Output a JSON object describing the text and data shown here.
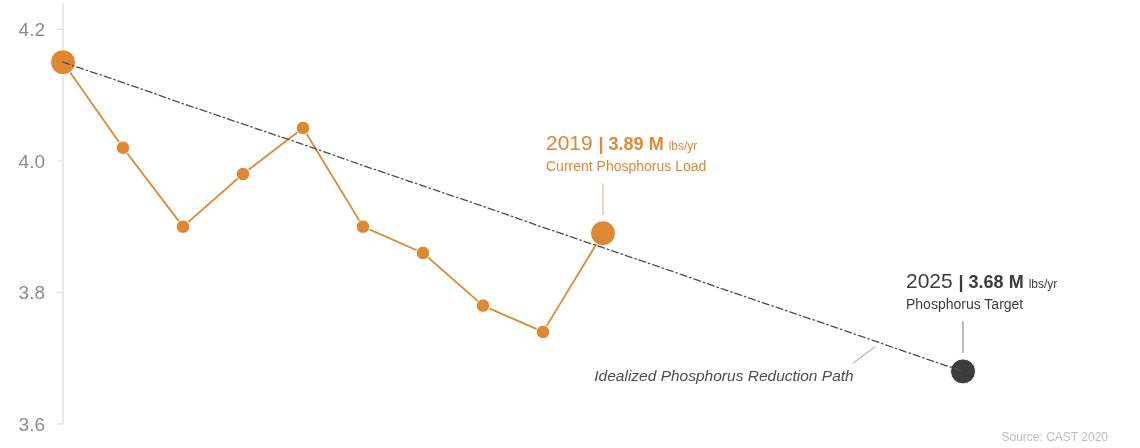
{
  "chart_data": {
    "type": "line",
    "categories": [
      null,
      null,
      null,
      null,
      null,
      null,
      null,
      null,
      null,
      null,
      null,
      null,
      null,
      null,
      null,
      null
    ],
    "ylim": [
      3.6,
      4.24
    ],
    "yticks": [
      3.6,
      3.8,
      {
        "value": 4,
        "label": "4.0"
      },
      4.2
    ],
    "tick_labels": "y",
    "series": [
      {
        "name": "Idealized Phosphorus Reduction Path",
        "color": "#4d4d4d",
        "line_style": "dashed",
        "values": [
          4.15,
          4.119,
          4.087,
          4.056,
          4.025,
          3.993,
          3.962,
          3.931,
          3.899,
          3.868,
          3.837,
          3.805,
          3.774,
          3.743,
          3.711,
          3.68
        ]
      },
      {
        "color": "#df8834",
        "values": [
          4.15,
          4.02,
          3.9,
          3.98,
          4.05,
          3.9,
          3.86,
          3.78,
          3.74,
          3.89,
          null,
          null,
          null,
          null,
          null,
          null
        ]
      },
      {
        "type": "scatter",
        "color": "#df8834",
        "values": [
          null,
          4.02,
          3.9,
          3.98,
          4.05,
          3.9,
          3.86,
          3.78,
          3.74,
          null,
          null,
          null,
          null,
          null,
          null,
          null
        ]
      },
      {
        "type": "scatter",
        "name": "Current Phosphorus Load",
        "color": "#df8834",
        "values": [
          4.15,
          null,
          null,
          null,
          null,
          null,
          null,
          null,
          null,
          3.89,
          null,
          null,
          null,
          null,
          null,
          null
        ],
        "value_labels": [
          null,
          null,
          null,
          null,
          null,
          null,
          null,
          null,
          null,
          "2019 | 3.89 M lbs/yr",
          null,
          null,
          null,
          null,
          null,
          null
        ]
      },
      {
        "type": "scatter",
        "name": "Phosphorus Target",
        "color": "#3c3c3c",
        "values": [
          null,
          null,
          null,
          null,
          null,
          null,
          null,
          null,
          null,
          null,
          null,
          null,
          null,
          null,
          null,
          3.68
        ],
        "value_labels": [
          null,
          null,
          null,
          null,
          null,
          null,
          null,
          null,
          null,
          null,
          null,
          null,
          null,
          null,
          null,
          "2025 | 3.68 M lbs/yr"
        ]
      }
    ],
    "annotations": [
      "Source: CAST 2020"
    ]
  }
}
